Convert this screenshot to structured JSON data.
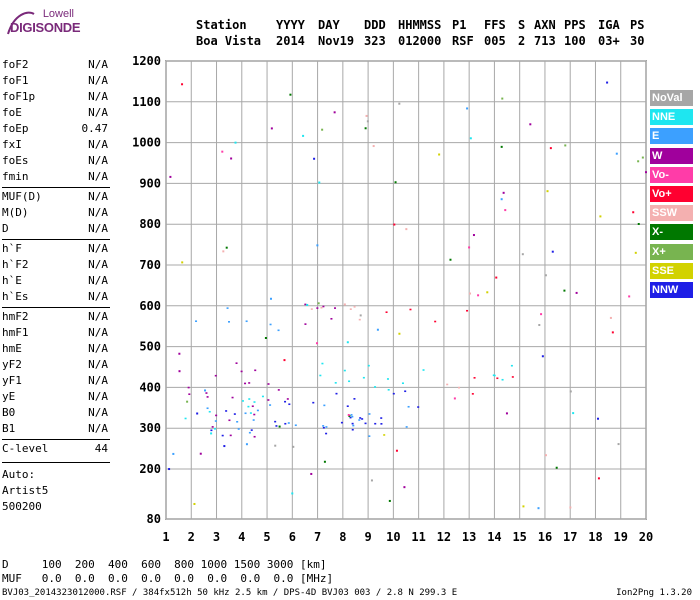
{
  "logo": {
    "brand": "Lowell",
    "product": "DIGISONDE"
  },
  "header": {
    "labels": [
      "Station",
      "YYYY",
      "DAY",
      "DDD",
      "HHMMSS",
      "P1",
      "FFS",
      "S",
      "AXN",
      "PPS",
      "IGA",
      "PS"
    ],
    "values": [
      "Boa Vista",
      "2014",
      "Nov19",
      "323",
      "012000",
      "RSF",
      "005",
      "2",
      "713",
      "100",
      "03+",
      "30"
    ]
  },
  "params": [
    {
      "key": "foF2",
      "value": "N/A"
    },
    {
      "key": "foF1",
      "value": "N/A"
    },
    {
      "key": "foF1p",
      "value": "N/A"
    },
    {
      "key": "foE",
      "value": "N/A"
    },
    {
      "key": "foEp",
      "value": "0.47"
    },
    {
      "key": "fxI",
      "value": "N/A"
    },
    {
      "key": "foEs",
      "value": "N/A"
    },
    {
      "key": "fmin",
      "value": "N/A"
    },
    {
      "key": "MUF(D)",
      "value": "N/A"
    },
    {
      "key": "M(D)",
      "value": "N/A"
    },
    {
      "key": "D",
      "value": "N/A"
    },
    {
      "key": "h`F",
      "value": "N/A"
    },
    {
      "key": "h`F2",
      "value": "N/A"
    },
    {
      "key": "h`E",
      "value": "N/A"
    },
    {
      "key": "h`Es",
      "value": "N/A"
    },
    {
      "key": "hmF2",
      "value": "N/A"
    },
    {
      "key": "hmF1",
      "value": "N/A"
    },
    {
      "key": "hmE",
      "value": "N/A"
    },
    {
      "key": "yF2",
      "value": "N/A"
    },
    {
      "key": "yF1",
      "value": "N/A"
    },
    {
      "key": "yE",
      "value": "N/A"
    },
    {
      "key": "B0",
      "value": "N/A"
    },
    {
      "key": "B1",
      "value": "N/A"
    },
    {
      "key": "C-level",
      "value": "44"
    }
  ],
  "auto": [
    "Auto:",
    "Artist5",
    "500200"
  ],
  "legend": [
    {
      "label": "NoVal",
      "color": "#a6a6a6"
    },
    {
      "label": "NNE",
      "color": "#1ee6f0"
    },
    {
      "label": "E",
      "color": "#3ca0ff"
    },
    {
      "label": "W",
      "color": "#a0009c"
    },
    {
      "label": "Vo-",
      "color": "#ff3ca8"
    },
    {
      "label": "Vo+",
      "color": "#ff0030"
    },
    {
      "label": "SSW",
      "color": "#f4b0b0"
    },
    {
      "label": "X-",
      "color": "#007800"
    },
    {
      "label": "X+",
      "color": "#78b450"
    },
    {
      "label": "SSE",
      "color": "#d2d200"
    },
    {
      "label": "NNW",
      "color": "#1e1ee6"
    }
  ],
  "footer": {
    "d_row": "D     100  200  400  600  800 1000 1500 3000 [km]",
    "muf_row": "MUF   0.0  0.0  0.0  0.0  0.0  0.0  0.0  0.0 [MHz]",
    "file_line": "BVJ03_2014323012000.RSF / 384fx512h 50 kHz 2.5 km / DPS-4D BVJ03 003 / 2.8 N 299.3 E",
    "version": "Ion2Png 1.3.20"
  },
  "chart_data": {
    "type": "scatter",
    "title": "",
    "xlabel": "",
    "ylabel": "",
    "xlim": [
      1,
      20
    ],
    "ylim": [
      80,
      1200
    ],
    "x_ticks": [
      1,
      2,
      3,
      4,
      5,
      6,
      7,
      8,
      9,
      10,
      11,
      12,
      13,
      14,
      15,
      16,
      17,
      18,
      19,
      20
    ],
    "y_ticks": [
      80,
      200,
      300,
      400,
      500,
      600,
      700,
      800,
      900,
      1000,
      1100,
      1200
    ],
    "grid": true,
    "legend_position": "right",
    "series": [
      {
        "name": "NNW",
        "color": "#1e1ee6",
        "regions": [
          {
            "x": [
              1.7,
              11.2
            ],
            "y": [
              240,
              345
            ],
            "slope": 7
          }
        ]
      },
      {
        "name": "W",
        "color": "#a0009c",
        "regions": [
          {
            "x": [
              1.8,
              5.8
            ],
            "y": [
              280,
              470
            ]
          },
          {
            "x": [
              6.2,
              9.4
            ],
            "y": [
              540,
              610
            ]
          }
        ]
      },
      {
        "name": "NNE",
        "color": "#1ee6f0",
        "regions": [
          {
            "x": [
              1.7,
              5.6
            ],
            "y": [
              300,
              380
            ]
          },
          {
            "x": [
              6.5,
              11.3
            ],
            "y": [
              385,
              470
            ]
          },
          {
            "x": [
              13.8,
              15.2
            ],
            "y": [
              420,
              510
            ]
          }
        ]
      },
      {
        "name": "E",
        "color": "#3ca0ff",
        "regions": [
          {
            "x": [
              1.7,
              11.2
            ],
            "y": [
              280,
              360
            ]
          },
          {
            "x": [
              2.0,
              5.5
            ],
            "y": [
              540,
              600
            ]
          }
        ]
      },
      {
        "name": "SSW",
        "color": "#f4b0b0",
        "regions": [
          {
            "x": [
              6.2,
              9.3
            ],
            "y": [
              540,
              600
            ]
          },
          {
            "x": [
              11.6,
              13.2
            ],
            "y": [
              370,
              420
            ]
          }
        ]
      },
      {
        "name": "Vo+",
        "color": "#ff0030",
        "regions": [
          {
            "x": [
              9.6,
              13.2
            ],
            "y": [
              560,
              600
            ]
          },
          {
            "x": [
              12.5,
              15.5
            ],
            "y": [
              380,
              430
            ]
          }
        ]
      },
      {
        "name": "SSE",
        "color": "#d2d200",
        "regions": [
          {
            "x": [
              8.0,
              10.0
            ],
            "y": [
              280,
              300
            ]
          }
        ]
      }
    ]
  }
}
